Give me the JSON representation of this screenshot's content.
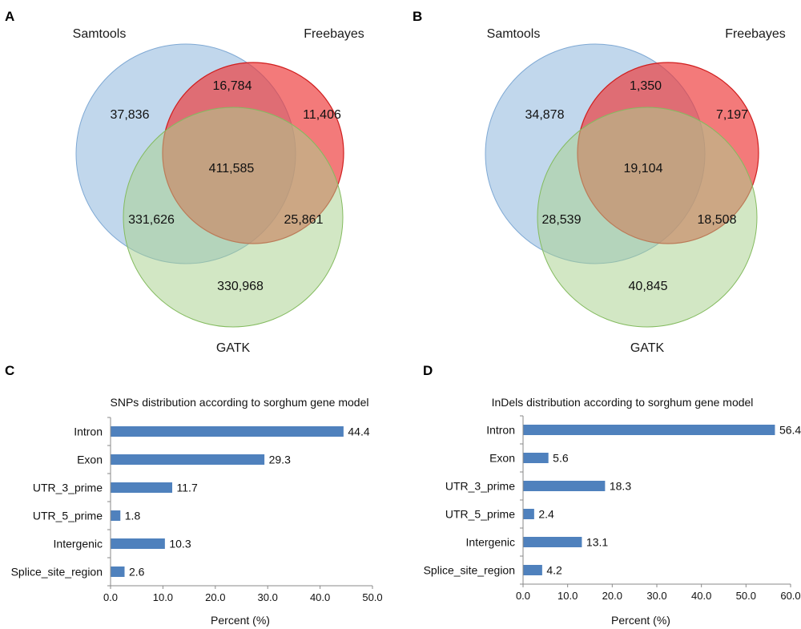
{
  "panels": {
    "A": {
      "letter": "A",
      "sets": {
        "samtools": "Samtools",
        "freebayes": "Freebayes",
        "gatk": "GATK"
      },
      "counts": {
        "samtools_only": "37,836",
        "samtools_freebayes": "16,784",
        "freebayes_only": "11,406",
        "all_three": "411,585",
        "samtools_gatk": "331,626",
        "freebayes_gatk": "25,861",
        "gatk_only": "330,968"
      }
    },
    "B": {
      "letter": "B",
      "sets": {
        "samtools": "Samtools",
        "freebayes": "Freebayes",
        "gatk": "GATK"
      },
      "counts": {
        "samtools_only": "34,878",
        "samtools_freebayes": "1,350",
        "freebayes_only": "7,197",
        "all_three": "19,104",
        "samtools_gatk": "28,539",
        "freebayes_gatk": "18,508",
        "gatk_only": "40,845"
      }
    },
    "C": {
      "letter": "C"
    },
    "D": {
      "letter": "D"
    }
  },
  "colors": {
    "samtools": "#9bbfe0",
    "freebayes": "#ee3b3b",
    "gatk": "#a9d18e",
    "bar": "#4f81bd"
  },
  "chart_data": [
    {
      "panel": "A",
      "type": "venn",
      "sets": [
        "Samtools",
        "Freebayes",
        "GATK"
      ],
      "regions": {
        "Samtools only": 37836,
        "Samtools & Freebayes": 16784,
        "Freebayes only": 11406,
        "Samtools & Freebayes & GATK": 411585,
        "Samtools & GATK": 331626,
        "Freebayes & GATK": 25861,
        "GATK only": 330968
      }
    },
    {
      "panel": "B",
      "type": "venn",
      "sets": [
        "Samtools",
        "Freebayes",
        "GATK"
      ],
      "regions": {
        "Samtools only": 34878,
        "Samtools & Freebayes": 1350,
        "Freebayes only": 7197,
        "Samtools & Freebayes & GATK": 19104,
        "Samtools & GATK": 28539,
        "Freebayes & GATK": 18508,
        "GATK only": 40845
      }
    },
    {
      "panel": "C",
      "type": "bar",
      "orientation": "horizontal",
      "title": "SNPs distribution according to sorghum gene model",
      "categories": [
        "Intron",
        "Exon",
        "UTR_3_prime",
        "UTR_5_prime",
        "Intergenic",
        "Splice_site_region"
      ],
      "values": [
        44.4,
        29.3,
        11.7,
        1.8,
        10.3,
        2.6
      ],
      "value_labels": [
        "44.4",
        "29.3",
        "11.7",
        "1.8",
        "10.3",
        "2.6"
      ],
      "xlabel": "Percent (%)",
      "xlim": [
        0,
        50
      ],
      "ticks": [
        "0.0",
        "10.0",
        "20.0",
        "30.0",
        "40.0",
        "50.0"
      ]
    },
    {
      "panel": "D",
      "type": "bar",
      "orientation": "horizontal",
      "title": "InDels distribution according to sorghum gene model",
      "categories": [
        "Intron",
        "Exon",
        "UTR_3_prime",
        "UTR_5_prime",
        "Intergenic",
        "Splice_site_region"
      ],
      "values": [
        56.4,
        5.6,
        18.3,
        2.4,
        13.1,
        4.2
      ],
      "value_labels": [
        "56.4",
        "5.6",
        "18.3",
        "2.4",
        "13.1",
        "4.2"
      ],
      "xlabel": "Percent (%)",
      "xlim": [
        0,
        60
      ],
      "ticks": [
        "0.0",
        "10.0",
        "20.0",
        "30.0",
        "40.0",
        "50.0",
        "60.0"
      ]
    }
  ]
}
